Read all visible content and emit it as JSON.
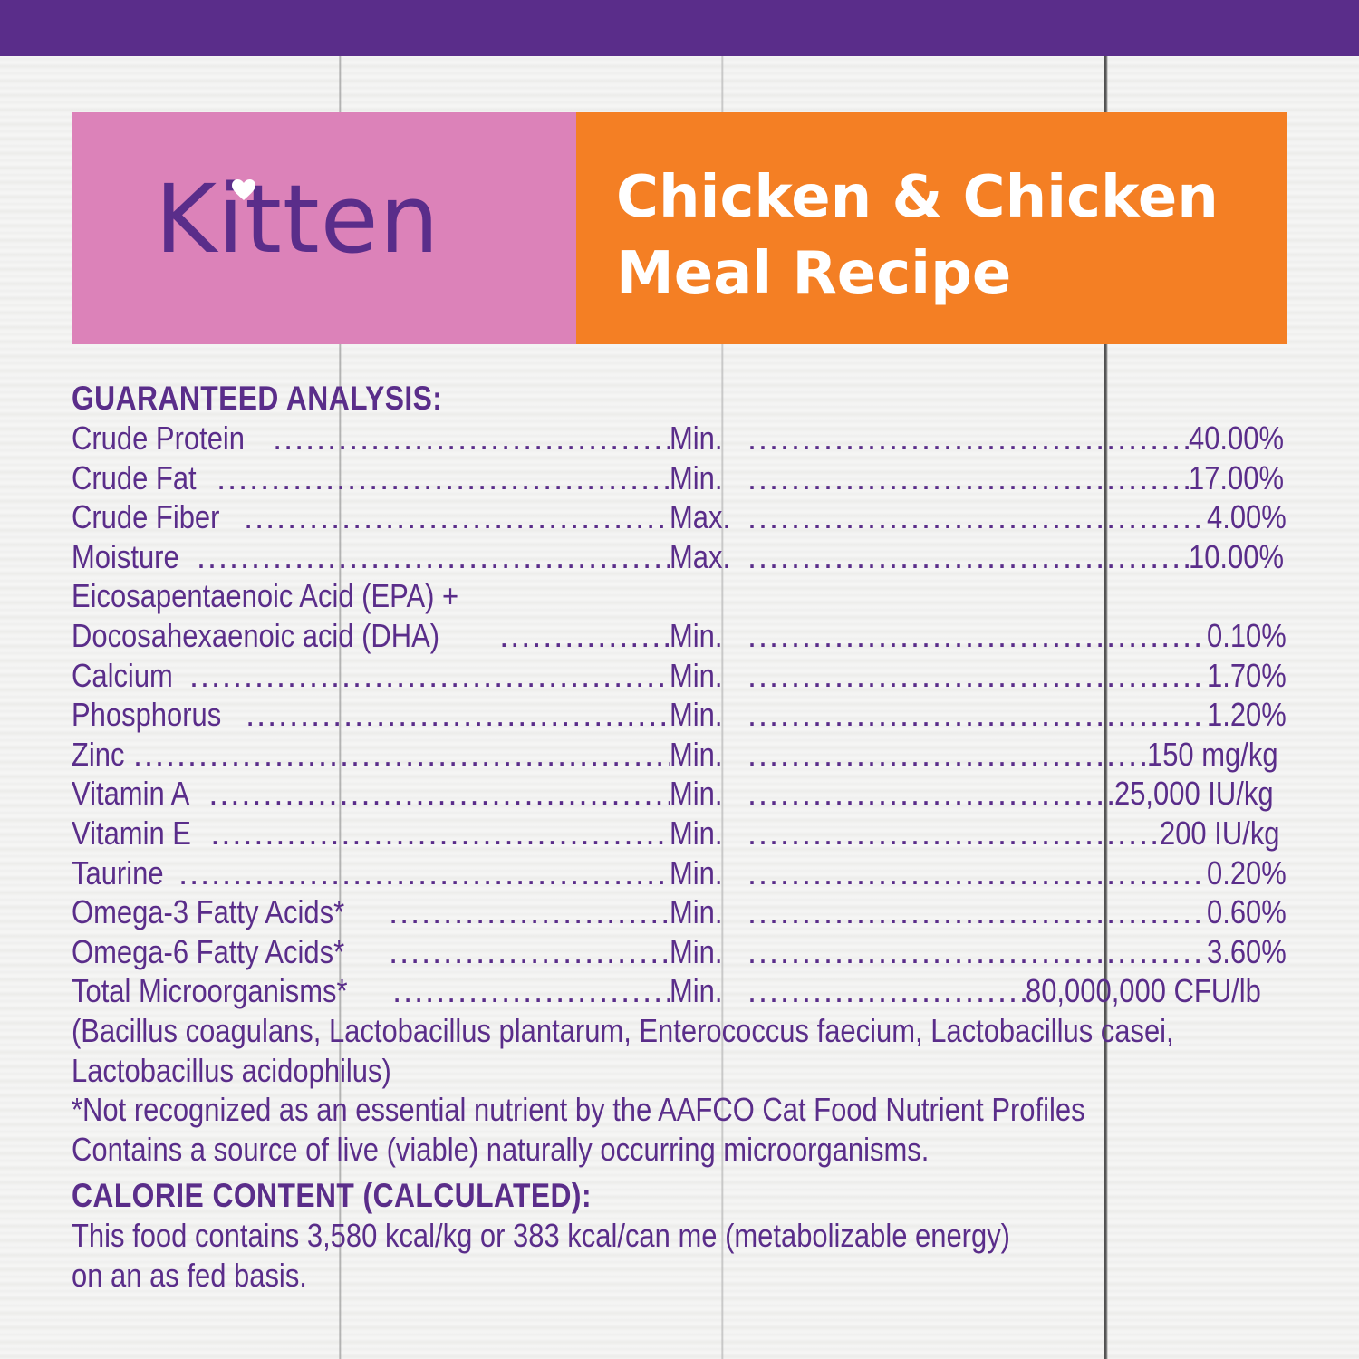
{
  "colors": {
    "purple": "#5a2d8a",
    "pink": "#dc82b9",
    "orange": "#f47f24",
    "white": "#ffffff"
  },
  "banner": {
    "brand_word": "Kitten",
    "heart_icon": "heart-icon",
    "recipe_title": "Chicken & Chicken\nMeal Recipe"
  },
  "analysis": {
    "heading": "GUARANTEED ANALYSIS:",
    "rows": [
      {
        "name": "Crude Protein",
        "limit": "Min.",
        "value": "40.00%"
      },
      {
        "name": "Crude Fat",
        "limit": "Min.",
        "value": "17.00%"
      },
      {
        "name": "Crude Fiber",
        "limit": "Max.",
        "value": "4.00%"
      },
      {
        "name": "Moisture",
        "limit": "Max.",
        "value": "10.00%"
      },
      {
        "name": "Docosahexaenoic acid (DHA)",
        "limit": "Min.",
        "value": "0.10%"
      },
      {
        "name": "Calcium",
        "limit": "Min.",
        "value": "1.70%"
      },
      {
        "name": "Phosphorus",
        "limit": "Min.",
        "value": "1.20%"
      },
      {
        "name": "Zinc",
        "limit": "Min.",
        "value": "150 mg/kg"
      },
      {
        "name": "Vitamin A",
        "limit": "Min.",
        "value": "25,000 IU/kg"
      },
      {
        "name": "Vitamin E",
        "limit": "Min.",
        "value": "200 IU/kg"
      },
      {
        "name": "Taurine",
        "limit": "Min.",
        "value": "0.20%"
      },
      {
        "name": "Omega-3 Fatty Acids*",
        "limit": "Min.",
        "value": "0.60%"
      },
      {
        "name": "Omega-6 Fatty Acids*",
        "limit": "Min.",
        "value": "3.60%"
      },
      {
        "name": "Total Microorganisms*",
        "limit": "Min.",
        "value": "80,000,000 CFU/lb"
      }
    ],
    "epa_line": "Eicosapentaenoic Acid (EPA) +",
    "organisms_line1": "(Bacillus coagulans, Lactobacillus plantarum, Enterococcus faecium, Lactobacillus casei,",
    "organisms_line2": "Lactobacillus acidophilus)",
    "footnote": "*Not recognized as an essential nutrient by the AAFCO Cat Food Nutrient Profiles",
    "live_note": "Contains a source of live (viable) naturally occurring microorganisms."
  },
  "calorie": {
    "heading": "CALORIE CONTENT (CALCULATED):",
    "line1": "This food contains 3,580 kcal/kg or 383 kcal/can me (metabolizable energy)",
    "line2": "on an as fed basis."
  }
}
